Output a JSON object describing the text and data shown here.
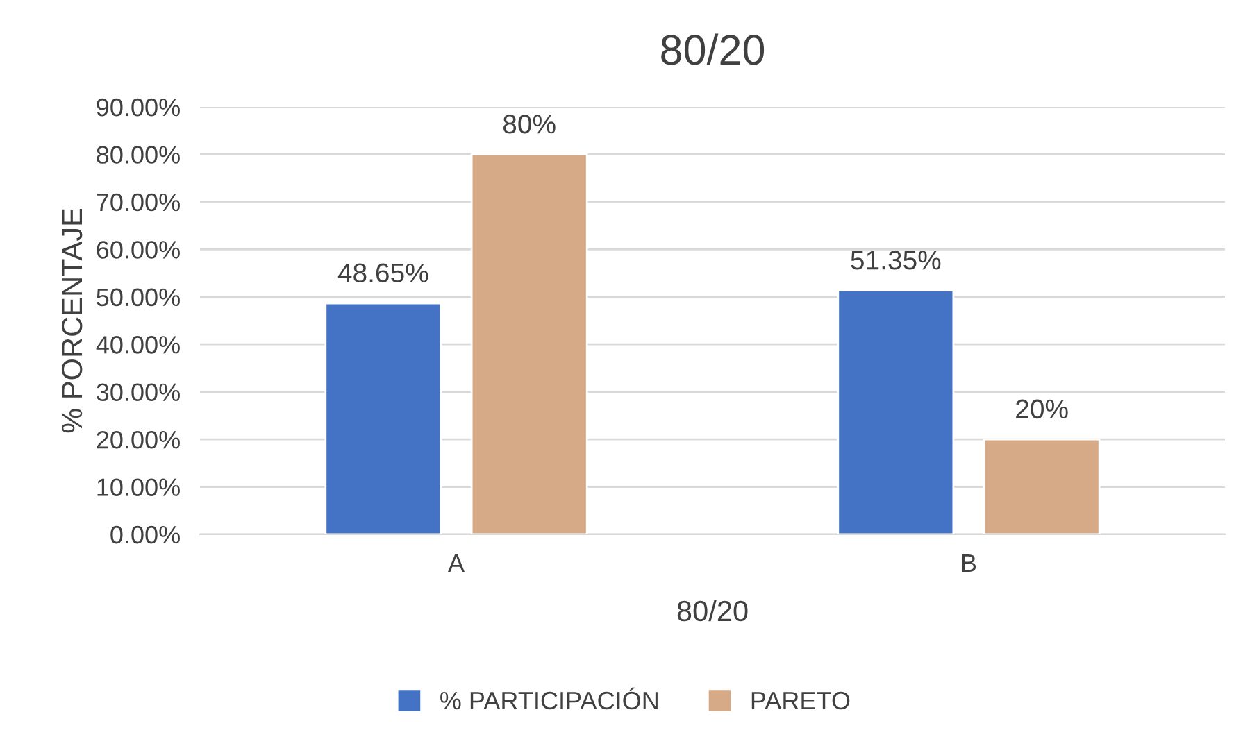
{
  "chart_data": {
    "type": "bar",
    "title": "80/20",
    "xlabel": "80/20",
    "ylabel": "% PORCENTAJE",
    "categories": [
      "A",
      "B"
    ],
    "series": [
      {
        "name": "% PARTICIPACIÓN",
        "color": "#4472c4",
        "values": [
          48.65,
          51.35
        ],
        "value_labels": [
          "48.65%",
          "51.35%"
        ]
      },
      {
        "name": "PARETO",
        "color": "#d6aa87",
        "values": [
          80,
          20
        ],
        "value_labels": [
          "80%",
          "20%"
        ]
      }
    ],
    "ylim": [
      0,
      90
    ],
    "yticks": [
      {
        "value": 0,
        "label": "0.00%"
      },
      {
        "value": 10,
        "label": "10.00%"
      },
      {
        "value": 20,
        "label": "20.00%"
      },
      {
        "value": 30,
        "label": "30.00%"
      },
      {
        "value": 40,
        "label": "40.00%"
      },
      {
        "value": 50,
        "label": "50.00%"
      },
      {
        "value": 60,
        "label": "60.00%"
      },
      {
        "value": 70,
        "label": "70.00%"
      },
      {
        "value": 80,
        "label": "80.00%"
      },
      {
        "value": 90,
        "label": "90.00%"
      }
    ],
    "grid": "y",
    "legend": "bottom"
  }
}
